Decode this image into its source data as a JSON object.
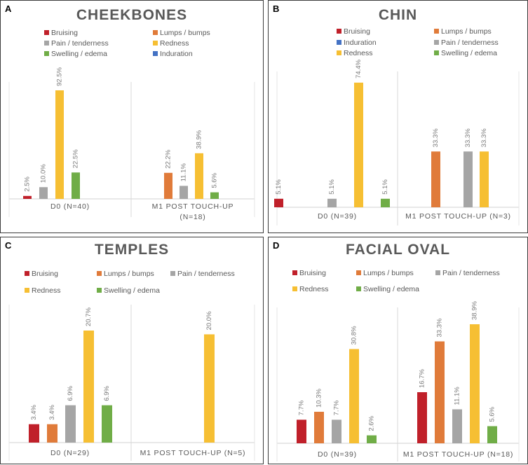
{
  "chart_data": [
    {
      "type": "bar",
      "panel_label": "A",
      "title": "CHEEKBONES",
      "legend": [
        "Bruising",
        "Lumps / bumps",
        "Pain / tenderness",
        "Redness",
        "Swelling / edema",
        "Induration"
      ],
      "groups": [
        {
          "label": "D0 (N=40)",
          "bars": [
            {
              "series": "Bruising",
              "value": 2.5,
              "label": "2.5%"
            },
            {
              "series": "Pain / tenderness",
              "value": 10.0,
              "label": "10.0%"
            },
            {
              "series": "Redness",
              "value": 92.5,
              "label": "92.5%"
            },
            {
              "series": "Swelling / edema",
              "value": 22.5,
              "label": "22.5%"
            }
          ]
        },
        {
          "label": "M1 POST TOUCH-UP (N=18)",
          "bars": [
            {
              "series": "Lumps / bumps",
              "value": 22.2,
              "label": "22.2%"
            },
            {
              "series": "Pain / tenderness",
              "value": 11.1,
              "label": "11.1%"
            },
            {
              "series": "Redness",
              "value": 38.9,
              "label": "38.9%"
            },
            {
              "series": "Swelling / edema",
              "value": 5.6,
              "label": "5.6%"
            }
          ]
        }
      ]
    },
    {
      "type": "bar",
      "panel_label": "B",
      "title": "CHIN",
      "legend": [
        "Bruising",
        "Lumps / bumps",
        "Induration",
        "Pain / tenderness",
        "Redness",
        "Swelling / edema"
      ],
      "groups": [
        {
          "label": "D0 (N=39)",
          "bars": [
            {
              "series": "Bruising",
              "value": 5.1,
              "label": "5.1%"
            },
            {
              "series": "Pain / tenderness",
              "value": 5.1,
              "label": "5.1%"
            },
            {
              "series": "Redness",
              "value": 74.4,
              "label": "74.4%"
            },
            {
              "series": "Swelling / edema",
              "value": 5.1,
              "label": "5.1%"
            }
          ]
        },
        {
          "label": "M1 POST TOUCH-UP (N=3)",
          "bars": [
            {
              "series": "Lumps / bumps",
              "value": 33.3,
              "label": "33.3%"
            },
            {
              "series": "Pain / tenderness",
              "value": 33.3,
              "label": "33.3%"
            },
            {
              "series": "Redness",
              "value": 33.3,
              "label": "33.3%"
            }
          ]
        }
      ]
    },
    {
      "type": "bar",
      "panel_label": "C",
      "title": "TEMPLES",
      "legend": [
        "Bruising",
        "Lumps / bumps",
        "Pain / tenderness",
        "Redness",
        "Swelling / edema"
      ],
      "groups": [
        {
          "label": "D0 (N=29)",
          "bars": [
            {
              "series": "Bruising",
              "value": 3.4,
              "label": "3.4%"
            },
            {
              "series": "Lumps / bumps",
              "value": 3.4,
              "label": "3.4%"
            },
            {
              "series": "Pain / tenderness",
              "value": 6.9,
              "label": "6.9%"
            },
            {
              "series": "Redness",
              "value": 20.7,
              "label": "20.7%"
            },
            {
              "series": "Swelling / edema",
              "value": 6.9,
              "label": "6.9%"
            }
          ]
        },
        {
          "label": "M1 POST TOUCH-UP (N=5)",
          "bars": [
            {
              "series": "Redness",
              "value": 20.0,
              "label": "20.0%"
            }
          ]
        }
      ]
    },
    {
      "type": "bar",
      "panel_label": "D",
      "title": "FACIAL OVAL",
      "legend": [
        "Bruising",
        "Lumps / bumps",
        "Pain / tenderness",
        "Redness",
        "Swelling / edema"
      ],
      "groups": [
        {
          "label": "D0 (N=39)",
          "bars": [
            {
              "series": "Bruising",
              "value": 7.7,
              "label": "7.7%"
            },
            {
              "series": "Lumps / bumps",
              "value": 10.3,
              "label": "10.3%"
            },
            {
              "series": "Pain / tenderness",
              "value": 7.7,
              "label": "7.7%"
            },
            {
              "series": "Redness",
              "value": 30.8,
              "label": "30.8%"
            },
            {
              "series": "Swelling / edema",
              "value": 2.6,
              "label": "2.6%"
            }
          ]
        },
        {
          "label": "M1 POST TOUCH-UP (N=18)",
          "bars": [
            {
              "series": "Bruising",
              "value": 16.7,
              "label": "16.7%"
            },
            {
              "series": "Lumps / bumps",
              "value": 33.3,
              "label": "33.3%"
            },
            {
              "series": "Pain / tenderness",
              "value": 11.1,
              "label": "11.1%"
            },
            {
              "series": "Redness",
              "value": 38.9,
              "label": "38.9%"
            },
            {
              "series": "Swelling / edema",
              "value": 5.6,
              "label": "5.6%"
            }
          ]
        }
      ]
    }
  ],
  "series_colors": {
    "Bruising": "#c0202a",
    "Lumps / bumps": "#e07b3a",
    "Pain / tenderness": "#a5a5a5",
    "Redness": "#f6bf33",
    "Swelling / edema": "#70ad47",
    "Induration": "#4472c4"
  }
}
